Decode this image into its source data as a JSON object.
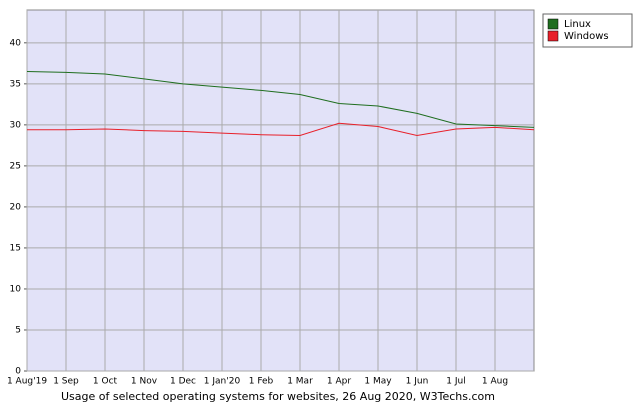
{
  "chart_data": {
    "type": "line",
    "caption": "Usage of selected operating systems for websites, 26 Aug 2020, W3Techs.com",
    "categories": [
      "1 Aug'19",
      "1 Sep",
      "1 Oct",
      "1 Nov",
      "1 Dec",
      "1 Jan'20",
      "1 Feb",
      "1 Mar",
      "1 Apr",
      "1 May",
      "1 Jun",
      "1 Jul",
      "1 Aug",
      null
    ],
    "series": [
      {
        "name": "Linux",
        "color": "#1f6e1f",
        "values": [
          36.5,
          36.4,
          36.2,
          35.6,
          35.0,
          34.6,
          34.2,
          33.7,
          32.6,
          32.3,
          31.4,
          30.1,
          29.9,
          29.7
        ]
      },
      {
        "name": "Windows",
        "color": "#e8202a",
        "values": [
          29.4,
          29.4,
          29.5,
          29.3,
          29.2,
          29.0,
          28.8,
          28.7,
          30.2,
          29.8,
          28.7,
          29.5,
          29.7,
          29.4
        ]
      }
    ],
    "ylim": [
      0,
      44
    ],
    "yticks": [
      0,
      5,
      10,
      15,
      20,
      25,
      30,
      35,
      40
    ],
    "grid": true
  }
}
